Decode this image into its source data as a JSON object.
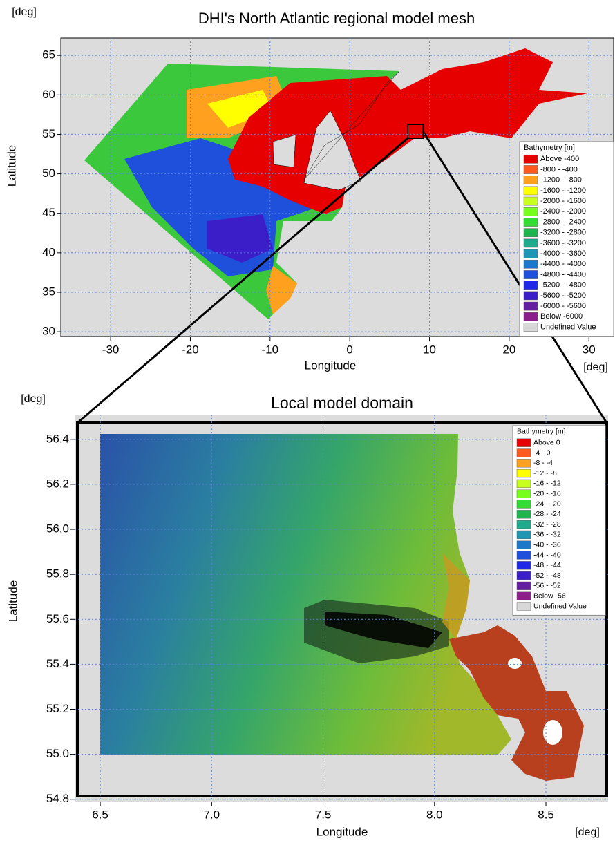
{
  "chart_data": [
    {
      "type": "map",
      "title": "DHI's North Atlantic regional model mesh",
      "x_label": "Longitude",
      "y_label": "Latitude",
      "x_unit": "[deg]",
      "y_unit": "[deg]",
      "xlim": [
        -36.25,
        33.1
      ],
      "ylim": [
        29.4,
        67.2
      ],
      "xticks": [
        -30,
        -20,
        -10,
        0,
        10,
        20,
        30
      ],
      "yticks": [
        30,
        35,
        40,
        45,
        50,
        55,
        60,
        65
      ],
      "grid": true,
      "legend": {
        "title": "Bathymetry [m]",
        "entries": [
          {
            "label": "Above   -400",
            "color": "#e60000"
          },
          {
            "label": "-800 -  -400",
            "color": "#ff5a1e"
          },
          {
            "label": "-1200 -  -800",
            "color": "#ffa01e"
          },
          {
            "label": "-1600 - -1200",
            "color": "#ffff00"
          },
          {
            "label": "-2000 - -1600",
            "color": "#c8ff1e"
          },
          {
            "label": "-2400 - -2000",
            "color": "#78ff1e"
          },
          {
            "label": "-2800 - -2400",
            "color": "#32dc32"
          },
          {
            "label": "-3200 - -2800",
            "color": "#1eb450"
          },
          {
            "label": "-3600 - -3200",
            "color": "#1eaa8c"
          },
          {
            "label": "-4000 - -3600",
            "color": "#1e96b4"
          },
          {
            "label": "-4400 - -4000",
            "color": "#1e78c8"
          },
          {
            "label": "-4800 - -4400",
            "color": "#1e50dc"
          },
          {
            "label": "-5200 - -4800",
            "color": "#1e28e6"
          },
          {
            "label": "-5600 - -5200",
            "color": "#3c1ec8"
          },
          {
            "label": "-6000 - -5600",
            "color": "#641ea0"
          },
          {
            "label": "Below  -6000",
            "color": "#8c1e8c"
          },
          {
            "label": "Undefined Value",
            "color": "#d8d8d8"
          }
        ]
      }
    },
    {
      "type": "map",
      "title": "Local model domain",
      "x_label": "Longitude",
      "y_label": "Latitude",
      "x_unit": "[deg]",
      "y_unit": "[deg]",
      "xlim": [
        6.385,
        8.779
      ],
      "ylim": [
        54.79,
        56.51
      ],
      "xticks": [
        6.5,
        {
          "value": 7,
          "label": "7.0"
        },
        7.5,
        {
          "value": 8,
          "label": "8.0"
        },
        8.5
      ],
      "yticks": [
        54.8,
        {
          "value": 55,
          "label": "55.0"
        },
        55.2,
        55.4,
        55.6,
        55.8,
        {
          "value": 56,
          "label": "56.0"
        },
        56.2,
        56.4
      ],
      "grid": true,
      "legend": {
        "title": "Bathymetry [m]",
        "entries": [
          {
            "label": "Above   0",
            "color": "#e60000"
          },
          {
            "label": "-4 -   0",
            "color": "#ff5a1e"
          },
          {
            "label": "-8 -  -4",
            "color": "#ffa01e"
          },
          {
            "label": "-12 -  -8",
            "color": "#ffff00"
          },
          {
            "label": "-16 - -12",
            "color": "#c8ff1e"
          },
          {
            "label": "-20 - -16",
            "color": "#78ff1e"
          },
          {
            "label": "-24 - -20",
            "color": "#32dc32"
          },
          {
            "label": "-28 - -24",
            "color": "#1eb450"
          },
          {
            "label": "-32 - -28",
            "color": "#1eaa8c"
          },
          {
            "label": "-36 - -32",
            "color": "#1e96b4"
          },
          {
            "label": "-40 - -36",
            "color": "#1e78c8"
          },
          {
            "label": "-44 - -40",
            "color": "#1e50dc"
          },
          {
            "label": "-48 - -44",
            "color": "#1e28e6"
          },
          {
            "label": "-52 - -48",
            "color": "#3c1ec8"
          },
          {
            "label": "-56 - -52",
            "color": "#641ea0"
          },
          {
            "label": "Below -56",
            "color": "#8c1e8c"
          },
          {
            "label": "Undefined Value",
            "color": "#d8d8d8"
          }
        ]
      }
    }
  ]
}
